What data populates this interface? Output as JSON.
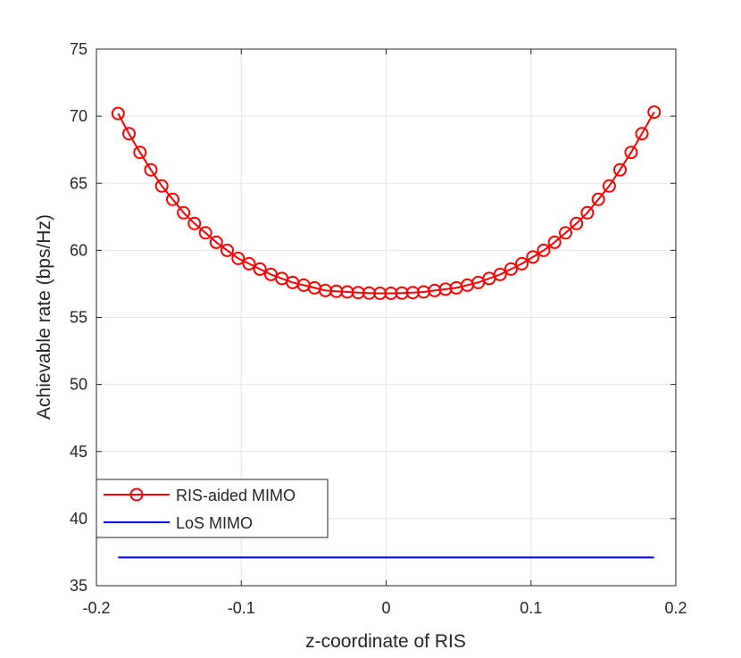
{
  "chart_data": {
    "type": "line",
    "title": "",
    "xlabel": "z-coordinate of RIS",
    "ylabel": "Achievable rate (bps/Hz)",
    "xlim": [
      -0.2,
      0.2
    ],
    "ylim": [
      35,
      75
    ],
    "xticks": [
      -0.2,
      -0.1,
      0,
      0.1,
      0.2
    ],
    "xtick_labels": [
      "-0.2",
      "-0.1",
      "0",
      "0.1",
      "0.2"
    ],
    "yticks": [
      35,
      40,
      45,
      50,
      55,
      60,
      65,
      70,
      75
    ],
    "ytick_labels": [
      "35",
      "40",
      "45",
      "50",
      "55",
      "60",
      "65",
      "70",
      "75"
    ],
    "grid": true,
    "legend_position": "bottom-left",
    "series": [
      {
        "name": "RIS-aided MIMO",
        "color": "#ff0000",
        "marker": "circle",
        "x": [
          -0.185,
          -0.1775,
          -0.1699,
          -0.1624,
          -0.1549,
          -0.1473,
          -0.1398,
          -0.1323,
          -0.1247,
          -0.1172,
          -0.1097,
          -0.1021,
          -0.0946,
          -0.0871,
          -0.0795,
          -0.072,
          -0.0645,
          -0.0569,
          -0.0494,
          -0.0419,
          -0.0343,
          -0.0268,
          -0.0193,
          -0.0117,
          -0.0042,
          0.0033,
          0.0109,
          0.0184,
          0.0259,
          0.0335,
          0.041,
          0.0485,
          0.0561,
          0.0636,
          0.0711,
          0.0787,
          0.0862,
          0.0937,
          0.1013,
          0.1088,
          0.1163,
          0.1239,
          0.1314,
          0.1389,
          0.1465,
          0.154,
          0.1615,
          0.1691,
          0.1766,
          0.185
        ],
        "values": [
          70.2,
          68.7,
          67.3,
          66.0,
          64.8,
          63.8,
          62.8,
          62.0,
          61.3,
          60.6,
          60.0,
          59.4,
          59.0,
          58.6,
          58.2,
          57.9,
          57.6,
          57.4,
          57.2,
          57.0,
          56.95,
          56.9,
          56.85,
          56.82,
          56.8,
          56.8,
          56.82,
          56.85,
          56.9,
          57.0,
          57.1,
          57.2,
          57.4,
          57.6,
          57.9,
          58.2,
          58.6,
          59.0,
          59.5,
          60.0,
          60.6,
          61.3,
          62.0,
          62.8,
          63.8,
          64.8,
          66.0,
          67.3,
          68.7,
          70.3
        ]
      },
      {
        "name": "LoS MIMO",
        "color": "#0000ff",
        "marker": "none",
        "x": [
          -0.185,
          0.185
        ],
        "values": [
          37.1,
          37.1
        ]
      }
    ]
  }
}
